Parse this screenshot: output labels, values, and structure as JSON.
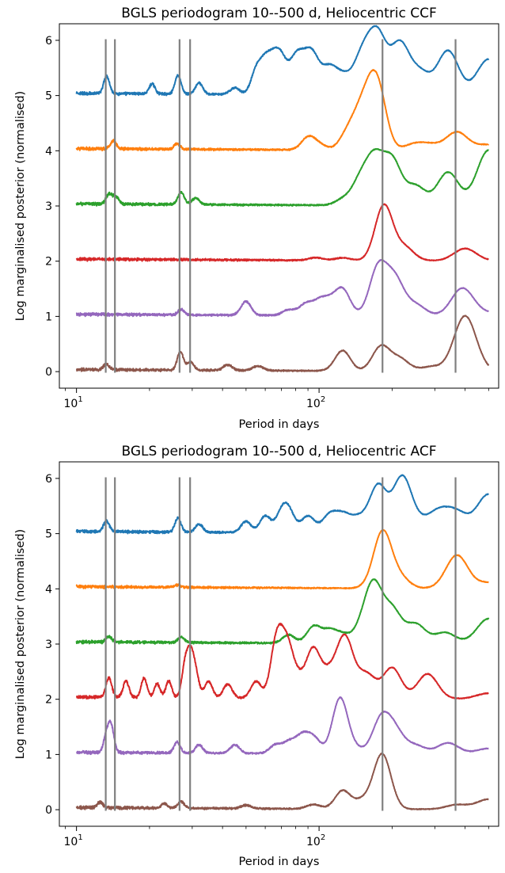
{
  "figure": {
    "panels": [
      {
        "title": "BGLS periodogram  10--500 d, Heliocentric CCF",
        "xlabel": "Period in days",
        "ylabel": "Log marginalised posterior (normalised)"
      },
      {
        "title": "BGLS periodogram  10--500 d, Heliocentric ACF",
        "xlabel": "Period in days",
        "ylabel": "Log marginalised posterior (normalised)"
      }
    ]
  },
  "chart_data": [
    {
      "type": "line",
      "title": "BGLS periodogram  10--500 d, Heliocentric CCF",
      "xlabel": "Period in days",
      "ylabel": "Log marginalised posterior (normalised)",
      "xscale": "log",
      "xlim": [
        8.5,
        550
      ],
      "ylim": [
        -0.3,
        6.3
      ],
      "xticks": [
        {
          "value": 10,
          "label": "10",
          "sup": "1"
        },
        {
          "value": 100,
          "label": "10",
          "sup": "2"
        }
      ],
      "yticks": [
        0,
        1,
        2,
        3,
        4,
        5,
        6
      ],
      "vlines": [
        13.2,
        14.4,
        26.6,
        29.4,
        182.6,
        365.25
      ],
      "vline_color": "#808080",
      "series": [
        {
          "offset": 5,
          "color": "#1f77b4",
          "peaks": [
            [
              13.3,
              0.32
            ],
            [
              20.5,
              0.18
            ],
            [
              26.2,
              0.34
            ],
            [
              32,
              0.2
            ],
            [
              45,
              0.12
            ],
            [
              55,
              0.4
            ],
            [
              60,
              0.5
            ],
            [
              65,
              0.45
            ],
            [
              70,
              0.55
            ],
            [
              80,
              0.6
            ],
            [
              88,
              0.4
            ],
            [
              95,
              0.55
            ],
            [
              110,
              0.45
            ],
            [
              125,
              0.3
            ],
            [
              145,
              0.3
            ],
            [
              155,
              0.5
            ],
            [
              175,
              1.0
            ],
            [
              215,
              0.9
            ],
            [
              260,
              0.4
            ],
            [
              340,
              0.8
            ],
            [
              500,
              0.65
            ]
          ]
        },
        {
          "offset": 4,
          "color": "#ff7f0e",
          "peaks": [
            [
              14.2,
              0.14
            ],
            [
              26,
              0.1
            ],
            [
              90,
              0.22
            ],
            [
              100,
              0.1
            ],
            [
              130,
              0.25
            ],
            [
              145,
              0.45
            ],
            [
              160,
              0.6
            ],
            [
              175,
              1.0
            ],
            [
              245,
              0.1
            ],
            [
              285,
              0.1
            ],
            [
              370,
              0.33
            ],
            [
              500,
              0.1
            ]
          ]
        },
        {
          "offset": 3,
          "color": "#2ca02c",
          "peaks": [
            [
              13.6,
              0.18
            ],
            [
              14.5,
              0.14
            ],
            [
              27,
              0.22
            ],
            [
              31,
              0.12
            ],
            [
              125,
              0.1
            ],
            [
              145,
              0.3
            ],
            [
              155,
              0.2
            ],
            [
              170,
              0.75
            ],
            [
              200,
              0.8
            ],
            [
              250,
              0.35
            ],
            [
              340,
              0.6
            ],
            [
              500,
              1.0
            ]
          ]
        },
        {
          "offset": 2,
          "color": "#d62728",
          "peaks": [
            [
              97,
              0.05
            ],
            [
              125,
              0.05
            ],
            [
              185,
              1.0
            ],
            [
              225,
              0.24
            ],
            [
              400,
              0.22
            ]
          ]
        },
        {
          "offset": 1,
          "color": "#9467bd",
          "peaks": [
            [
              27,
              0.1
            ],
            [
              50,
              0.25
            ],
            [
              75,
              0.1
            ],
            [
              88,
              0.2
            ],
            [
              100,
              0.22
            ],
            [
              110,
              0.2
            ],
            [
              125,
              0.47
            ],
            [
              175,
              0.85
            ],
            [
              205,
              0.65
            ],
            [
              250,
              0.2
            ],
            [
              390,
              0.5
            ],
            [
              500,
              0.05
            ]
          ]
        },
        {
          "offset": 0,
          "color": "#8c564b",
          "peaks": [
            [
              13.3,
              0.1
            ],
            [
              26.8,
              0.33
            ],
            [
              29.5,
              0.15
            ],
            [
              42,
              0.1
            ],
            [
              56,
              0.08
            ],
            [
              125,
              0.37
            ],
            [
              180,
              0.44
            ],
            [
              215,
              0.22
            ],
            [
              290,
              0.08
            ],
            [
              400,
              1.0
            ]
          ]
        }
      ]
    },
    {
      "type": "line",
      "title": "BGLS periodogram  10--500 d, Heliocentric ACF",
      "xlabel": "Period in days",
      "ylabel": "Log marginalised posterior (normalised)",
      "xscale": "log",
      "xlim": [
        8.5,
        550
      ],
      "ylim": [
        -0.3,
        6.3
      ],
      "xticks": [
        {
          "value": 10,
          "label": "10",
          "sup": "1"
        },
        {
          "value": 100,
          "label": "10",
          "sup": "2"
        }
      ],
      "yticks": [
        0,
        1,
        2,
        3,
        4,
        5,
        6
      ],
      "vlines": [
        13.2,
        14.4,
        26.6,
        29.4,
        182.6,
        365.25
      ],
      "vline_color": "#808080",
      "series": [
        {
          "offset": 5,
          "color": "#1f77b4",
          "peaks": [
            [
              13.3,
              0.2
            ],
            [
              26.2,
              0.25
            ],
            [
              32,
              0.15
            ],
            [
              50,
              0.2
            ],
            [
              60,
              0.3
            ],
            [
              70,
              0.3
            ],
            [
              75,
              0.35
            ],
            [
              90,
              0.3
            ],
            [
              110,
              0.3
            ],
            [
              125,
              0.3
            ],
            [
              145,
              0.25
            ],
            [
              175,
              0.85
            ],
            [
              220,
              1.0
            ],
            [
              260,
              0.15
            ],
            [
              310,
              0.35
            ],
            [
              370,
              0.35
            ],
            [
              500,
              0.7
            ]
          ]
        },
        {
          "offset": 4,
          "color": "#ff7f0e",
          "peaks": [
            [
              26,
              0.04
            ],
            [
              165,
              0.05
            ],
            [
              183,
              1.0
            ],
            [
              215,
              0.2
            ],
            [
              370,
              0.6
            ],
            [
              500,
              0.1
            ]
          ]
        },
        {
          "offset": 3,
          "color": "#2ca02c",
          "peaks": [
            [
              13.6,
              0.1
            ],
            [
              27,
              0.1
            ],
            [
              75,
              0.15
            ],
            [
              95,
              0.3
            ],
            [
              110,
              0.22
            ],
            [
              125,
              0.15
            ],
            [
              150,
              0.25
            ],
            [
              168,
              1.0
            ],
            [
              200,
              0.6
            ],
            [
              250,
              0.35
            ],
            [
              330,
              0.2
            ],
            [
              500,
              0.45
            ]
          ]
        },
        {
          "offset": 2,
          "color": "#d62728",
          "peaks": [
            [
              13.6,
              0.35
            ],
            [
              16,
              0.3
            ],
            [
              19,
              0.35
            ],
            [
              21.5,
              0.25
            ],
            [
              24,
              0.3
            ],
            [
              28,
              0.55
            ],
            [
              29.5,
              0.68
            ],
            [
              31,
              0.4
            ],
            [
              35,
              0.3
            ],
            [
              42,
              0.25
            ],
            [
              55,
              0.3
            ],
            [
              66,
              0.55
            ],
            [
              68,
              0.55
            ],
            [
              74,
              0.85
            ],
            [
              82,
              0.3
            ],
            [
              94,
              0.82
            ],
            [
              105,
              0.3
            ],
            [
              115,
              0.3
            ],
            [
              128,
              1.0
            ],
            [
              145,
              0.2
            ],
            [
              160,
              0.35
            ],
            [
              200,
              0.56
            ],
            [
              280,
              0.45
            ],
            [
              500,
              0.1
            ]
          ]
        },
        {
          "offset": 1,
          "color": "#9467bd",
          "peaks": [
            [
              13.3,
              0.3
            ],
            [
              13.9,
              0.45
            ],
            [
              26,
              0.2
            ],
            [
              32,
              0.15
            ],
            [
              45,
              0.15
            ],
            [
              66,
              0.15
            ],
            [
              75,
              0.2
            ],
            [
              85,
              0.3
            ],
            [
              95,
              0.28
            ],
            [
              122,
              1.0
            ],
            [
              140,
              0.1
            ],
            [
              180,
              0.6
            ],
            [
              205,
              0.4
            ],
            [
              250,
              0.15
            ],
            [
              340,
              0.2
            ],
            [
              500,
              0.1
            ]
          ]
        },
        {
          "offset": 0,
          "color": "#8c564b",
          "peaks": [
            [
              12.5,
              0.1
            ],
            [
              23,
              0.08
            ],
            [
              27,
              0.12
            ],
            [
              50,
              0.06
            ],
            [
              95,
              0.08
            ],
            [
              125,
              0.33
            ],
            [
              150,
              0.15
            ],
            [
              182,
              1.0
            ],
            [
              370,
              0.08
            ],
            [
              500,
              0.18
            ]
          ]
        }
      ]
    }
  ]
}
